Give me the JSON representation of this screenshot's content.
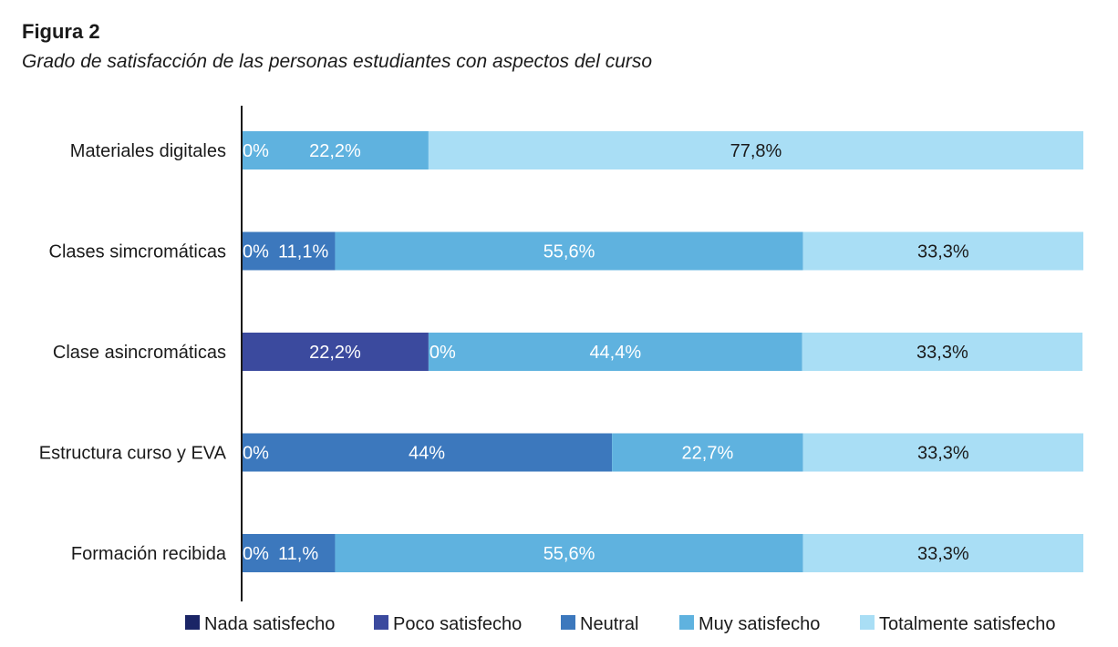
{
  "figure": {
    "label": "Figura 2",
    "title": "Grado de satisfacción de las personas estudiantes con aspectos del curso"
  },
  "chart_data": {
    "type": "bar",
    "orientation": "horizontal",
    "stacked": true,
    "normalized": true,
    "categories": [
      "Materiales digitales",
      "Clases simcromáticas",
      "Clase asincromáticas",
      "Estructura curso y EVA",
      "Formación recibida"
    ],
    "series": [
      {
        "name": "Nada satisfecho",
        "color": "#1b2566",
        "values": [
          0,
          0,
          0,
          0,
          0
        ],
        "labels": [
          "",
          "",
          "",
          "",
          ""
        ]
      },
      {
        "name": "Poco satisfecho",
        "color": "#3b4a9e",
        "values": [
          0,
          0,
          22.2,
          0,
          0
        ],
        "labels": [
          "",
          "",
          "22,2%",
          "",
          ""
        ]
      },
      {
        "name": "Neutral",
        "color": "#3c78bd",
        "values": [
          0,
          11.1,
          0,
          44,
          11.1
        ],
        "labels": [
          "0%",
          "0%  11,1%",
          "0%",
          "0%",
          "0%  11,%"
        ]
      },
      {
        "name": "Muy  satisfecho",
        "color": "#5fb2df",
        "values": [
          22.2,
          55.6,
          44.4,
          22.7,
          55.6
        ],
        "labels": [
          "22,2%",
          "55,6%",
          "44,4%",
          "22,7%",
          "55,6%"
        ]
      },
      {
        "name": "Totalmente  satisfecho",
        "color": "#a9def5",
        "values": [
          77.8,
          33.3,
          33.3,
          33.3,
          33.3
        ],
        "labels": [
          "77,8%",
          "33,3%",
          "33,3%",
          "33,3%",
          "33,3%"
        ]
      }
    ],
    "segment_labels": [
      [
        {
          "text": "0%",
          "series": 2,
          "anchor": "start"
        },
        {
          "text": "22,2%",
          "series": 3
        },
        {
          "text": "77,8%",
          "series": 4
        }
      ],
      [
        {
          "text": "0%",
          "series": 2,
          "anchor": "start"
        },
        {
          "text": "11,1%",
          "series": 2
        },
        {
          "text": "55,6%",
          "series": 3
        },
        {
          "text": "33,3%",
          "series": 4
        }
      ],
      [
        {
          "text": "22,2%",
          "series": 1
        },
        {
          "text": "0%",
          "series": 3,
          "anchor": "start"
        },
        {
          "text": "44,4%",
          "series": 3
        },
        {
          "text": "33,3%",
          "series": 4
        }
      ],
      [
        {
          "text": "0%",
          "series": 2,
          "anchor": "start"
        },
        {
          "text": "44%",
          "series": 2
        },
        {
          "text": "22,7%",
          "series": 3
        },
        {
          "text": "33,3%",
          "series": 4
        }
      ],
      [
        {
          "text": "0%",
          "series": 2,
          "anchor": "start"
        },
        {
          "text": "11,%",
          "series": 2
        },
        {
          "text": "55,6%",
          "series": 3
        },
        {
          "text": "33,3%",
          "series": 4
        }
      ]
    ],
    "xlim": [
      0,
      100
    ],
    "grid": false,
    "legend_position": "bottom"
  }
}
